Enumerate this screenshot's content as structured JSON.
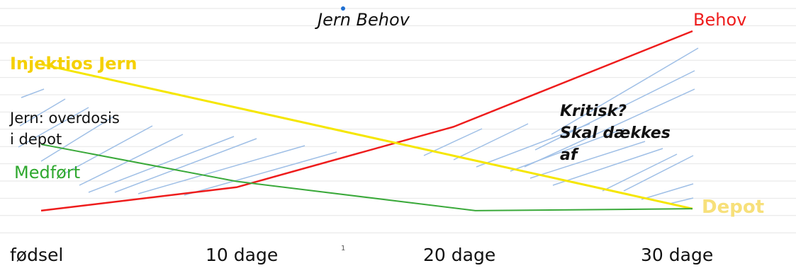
{
  "colors": {
    "behov": "#ee1c1c",
    "injektion": "#f5e600",
    "medfort": "#3aa93a",
    "hatch": "#9fbfe6",
    "grid": "#e6e6e6"
  },
  "chart_data": {
    "type": "line",
    "title": "Jern Behov",
    "x_ticks": [
      "fødsel",
      "10 dage",
      "20 dage",
      "30 dage"
    ],
    "xlim": [
      0,
      30
    ],
    "ylim": [
      0,
      100
    ],
    "grid": true,
    "series": [
      {
        "name": "Behov",
        "x": [
          0,
          9,
          19,
          30
        ],
        "y": [
          8,
          20,
          51,
          100
        ]
      },
      {
        "name": "Injektios Jern",
        "x": [
          0,
          30
        ],
        "y": [
          83,
          9
        ]
      },
      {
        "name": "Medført",
        "x": [
          0,
          9,
          20,
          30
        ],
        "y": [
          42,
          23,
          8,
          9
        ]
      }
    ],
    "annotations": {
      "overdosis": [
        "Jern: overdosis",
        "i depot"
      ],
      "kritisk": [
        "Kritisk?",
        "Skal dækkes",
        "af"
      ],
      "depot": "Depot"
    }
  },
  "slide_number": "1"
}
